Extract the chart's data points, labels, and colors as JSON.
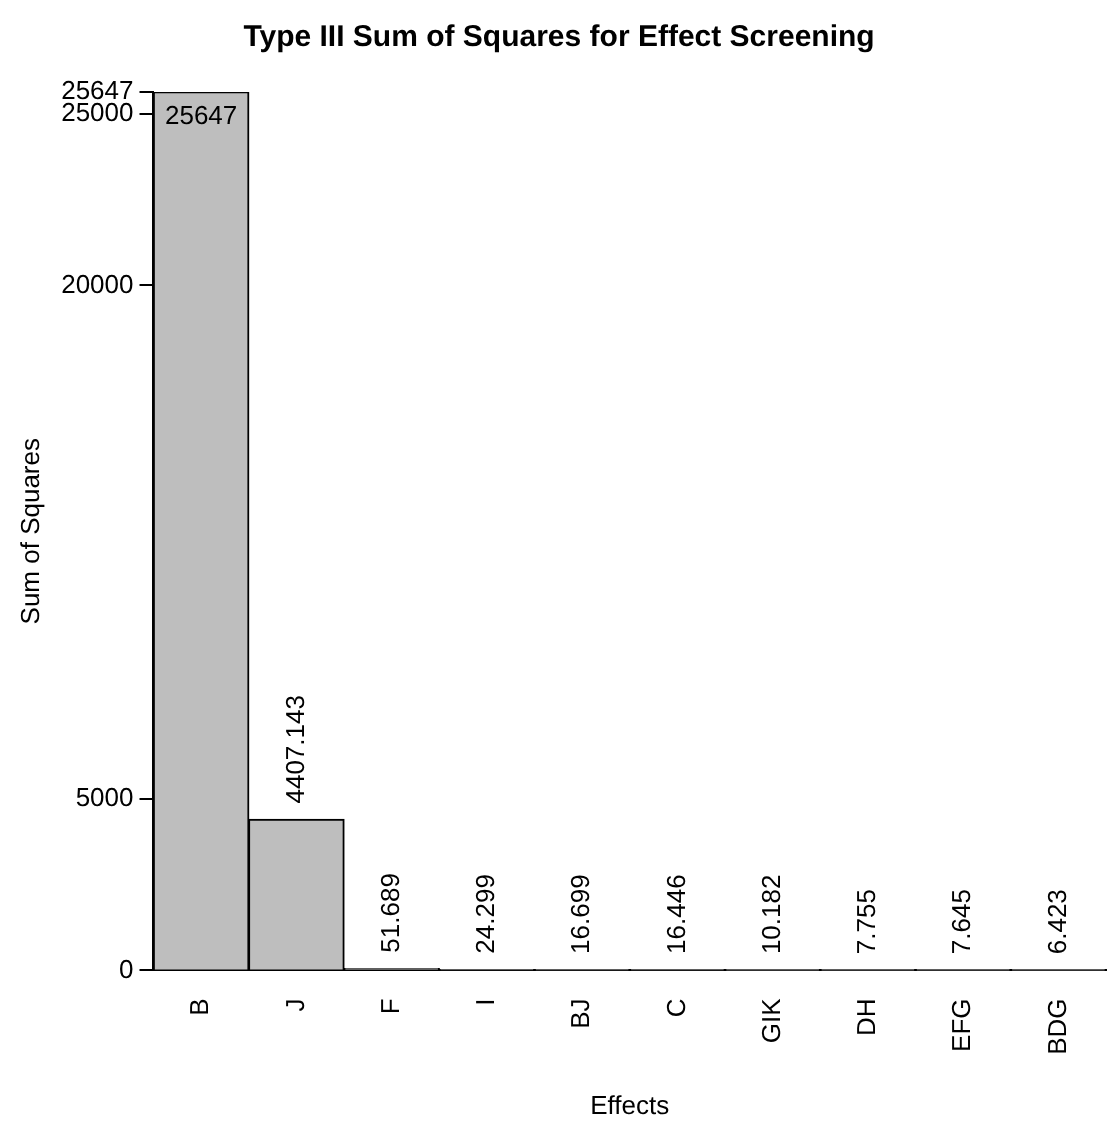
{
  "chart_data": {
    "type": "bar",
    "title": "Type III Sum of Squares for Effect Screening",
    "xlabel": "Effects",
    "ylabel": "Sum of Squares",
    "categories": [
      "B",
      "J",
      "F",
      "I",
      "BJ",
      "C",
      "GIK",
      "DH",
      "EFG",
      "BDG"
    ],
    "values": [
      25647,
      4407.143,
      51.689,
      24.299,
      16.699,
      16.446,
      10.182,
      7.755,
      7.645,
      6.423
    ],
    "color": "#bebebe",
    "ylim": [
      0,
      25647
    ],
    "yticks": [
      0,
      5000,
      20000,
      25000,
      25647
    ],
    "data_labels": true,
    "grid": false,
    "legend": false
  }
}
